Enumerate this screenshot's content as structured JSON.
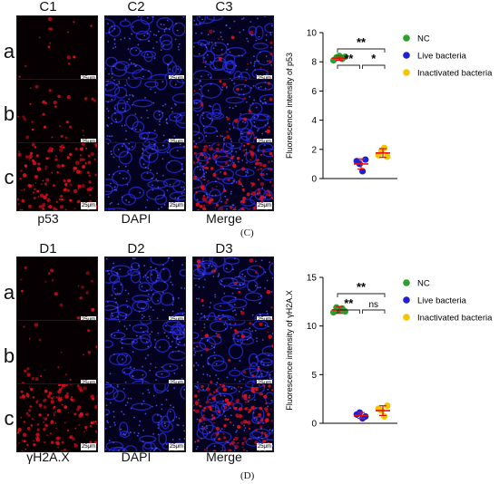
{
  "panel_c": {
    "columns": [
      "C1",
      "C2",
      "C3"
    ],
    "rows": [
      "a",
      "b",
      "c"
    ],
    "bottom_labels": [
      "p53",
      "DAPI",
      "Merge"
    ],
    "scale_label": "25μm",
    "figure_label": "(C)"
  },
  "panel_d": {
    "columns": [
      "D1",
      "D2",
      "D3"
    ],
    "rows": [
      "a",
      "b",
      "c"
    ],
    "bottom_labels": [
      "γH2A.X",
      "DAPI",
      "Merge"
    ],
    "scale_label": "25μm",
    "figure_label": "(D)"
  },
  "colors": {
    "nc": "#2ca02c",
    "live": "#1f1fd6",
    "inactivated": "#f2c500",
    "error_bar": "#e01010",
    "fluor_red": "#e0101e",
    "dapi_blue": "#2a2ee0"
  },
  "chart_data": [
    {
      "type": "scatter",
      "ylabel": "Fluorescence intensity of p53",
      "ylim": [
        0,
        10
      ],
      "yticks": [
        0,
        2,
        4,
        6,
        8,
        10
      ],
      "legend_position": "right",
      "series": [
        {
          "name": "NC",
          "values": [
            8.1,
            8.3,
            8.4,
            8.2,
            8.35
          ],
          "mean": 8.25,
          "sd": 0.15
        },
        {
          "name": "Live bacteria",
          "values": [
            1.2,
            1.0,
            0.5,
            1.3
          ],
          "mean": 1.0,
          "sd": 0.35
        },
        {
          "name": "Inactivated bacteria",
          "values": [
            1.6,
            1.9,
            2.1,
            1.5
          ],
          "mean": 1.75,
          "sd": 0.3
        }
      ],
      "significance": [
        {
          "from": 0,
          "to": 2,
          "label": "**"
        },
        {
          "from": 0,
          "to": 1,
          "label": "**"
        },
        {
          "from": 1,
          "to": 2,
          "label": "*"
        }
      ]
    },
    {
      "type": "scatter",
      "ylabel": "Fluorescence intensity of γH2A.X",
      "ylim": [
        0,
        15
      ],
      "yticks": [
        0,
        5,
        10,
        15
      ],
      "legend_position": "right",
      "series": [
        {
          "name": "NC",
          "values": [
            11.4,
            11.9,
            11.6,
            11.8,
            11.5
          ],
          "mean": 11.65,
          "sd": 0.35
        },
        {
          "name": "Live bacteria",
          "values": [
            0.9,
            1.1,
            0.5,
            0.7
          ],
          "mean": 0.8,
          "sd": 0.3
        },
        {
          "name": "Inactivated bacteria",
          "values": [
            1.5,
            1.3,
            0.7,
            1.8
          ],
          "mean": 1.3,
          "sd": 0.5
        }
      ],
      "significance": [
        {
          "from": 0,
          "to": 2,
          "label": "**"
        },
        {
          "from": 0,
          "to": 1,
          "label": "**"
        },
        {
          "from": 1,
          "to": 2,
          "label": "ns"
        }
      ]
    }
  ]
}
